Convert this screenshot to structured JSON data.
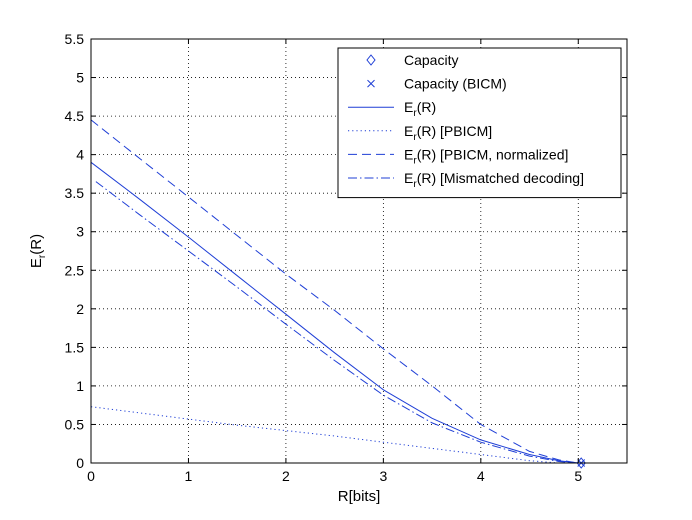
{
  "chart_data": {
    "type": "line",
    "xlabel": "R[bits]",
    "ylabel_main": "E",
    "ylabel_sub": "r",
    "ylabel_rest": "(R)",
    "xlim": [
      0,
      5.5
    ],
    "ylim": [
      0,
      5.5
    ],
    "xticks": [
      "0",
      "1",
      "2",
      "3",
      "4",
      "5"
    ],
    "yticks": [
      "0",
      "0.5",
      "1",
      "1.5",
      "2",
      "2.5",
      "3",
      "3.5",
      "4",
      "4.5",
      "5",
      "5.5"
    ],
    "grid": true,
    "legend_position": "top-right",
    "color": "#1f3fd6",
    "series": [
      {
        "style": "solid",
        "legend": {
          "main": "E",
          "sub": "r",
          "rest": "(R)"
        },
        "x": [
          0,
          0.5,
          1.0,
          1.5,
          2.0,
          2.5,
          3.0,
          3.5,
          4.0,
          4.5,
          4.8,
          5.0
        ],
        "y": [
          3.9,
          3.42,
          2.93,
          2.43,
          1.93,
          1.43,
          0.95,
          0.58,
          0.3,
          0.11,
          0.03,
          0.0
        ]
      },
      {
        "style": "dotted",
        "legend": {
          "main": "E",
          "sub": "r",
          "rest": "(R) [PBICM]"
        },
        "x": [
          0,
          0.5,
          1.0,
          1.5,
          2.0,
          2.5,
          3.0,
          3.5,
          4.0,
          4.5,
          4.8
        ],
        "y": [
          0.73,
          0.65,
          0.57,
          0.49,
          0.42,
          0.35,
          0.27,
          0.19,
          0.11,
          0.03,
          0.0
        ]
      },
      {
        "style": "dashed",
        "legend": {
          "main": "E",
          "sub": "r",
          "rest": "(R) [PBICM, normalized]"
        },
        "x": [
          0,
          0.5,
          1.0,
          1.5,
          2.0,
          2.5,
          3.0,
          3.5,
          4.0,
          4.5,
          4.8,
          5.0
        ],
        "y": [
          4.45,
          3.95,
          3.45,
          2.95,
          2.45,
          1.98,
          1.48,
          1.0,
          0.5,
          0.15,
          0.04,
          0.0
        ]
      },
      {
        "style": "dashdot",
        "legend": {
          "main": "E",
          "sub": "r",
          "rest": "(R) [Mismatched decoding]"
        },
        "x": [
          0.05,
          0.5,
          1.0,
          1.5,
          2.0,
          2.5,
          3.0,
          3.5,
          4.0,
          4.5,
          4.8,
          5.0
        ],
        "y": [
          3.65,
          3.22,
          2.75,
          2.28,
          1.8,
          1.33,
          0.88,
          0.52,
          0.27,
          0.09,
          0.02,
          0.0
        ]
      }
    ],
    "markers": [
      {
        "label": "Capacity",
        "shape": "diamond",
        "x": 5.03,
        "y": 0
      },
      {
        "label": "Capacity (BICM)",
        "shape": "x",
        "x": 5.03,
        "y": 0
      }
    ]
  }
}
